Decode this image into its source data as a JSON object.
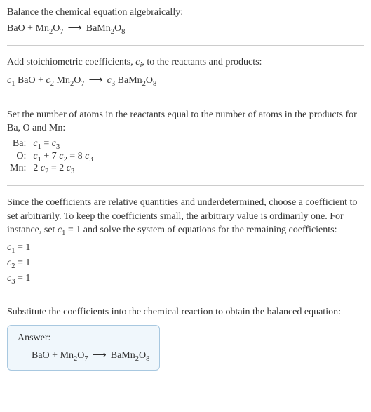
{
  "colors": {
    "text": "#333333",
    "divider": "#cccccc",
    "answer_border": "#a8c8e0",
    "answer_bg": "#f0f7fc"
  },
  "typography": {
    "body_fontsize_pt": 11,
    "font_family": "Georgia, Times New Roman, serif"
  },
  "s1": {
    "line1": "Balance the chemical equation algebraically:"
  },
  "s2": {
    "intro_a": "Add stoichiometric coefficients, ",
    "intro_b": ", to the reactants and products:"
  },
  "s3": {
    "intro": "Set the number of atoms in the reactants equal to the number of atoms in the products for Ba, O and Mn:",
    "rows": [
      {
        "el": "Ba:"
      },
      {
        "el": "O:"
      },
      {
        "el": "Mn:"
      }
    ]
  },
  "s4": {
    "intro_a": "Since the coefficients are relative quantities and underdetermined, choose a coefficient to set arbitrarily. To keep the coefficients small, the arbitrary value is ordinarily one. For instance, set ",
    "intro_b": " = 1 and solve the system of equations for the remaining coefficients:",
    "c1": " = 1",
    "c2": " = 1",
    "c3": " = 1"
  },
  "s5": {
    "intro": "Substitute the coefficients into the chemical reaction to obtain the balanced equation:",
    "answer_label": "Answer:"
  },
  "chem": {
    "BaO": "BaO",
    "plus": " + ",
    "Mn": "Mn",
    "two": "2",
    "O7": "O",
    "seven": "7",
    "arrow": "⟶",
    "BaMn": "BaMn",
    "O8": "O",
    "eight": "8",
    "c": "c",
    "i": "i",
    "one": "1",
    "three": "3",
    "eq": " = ",
    "plus7": " + 7 ",
    "eq8": " = 8 ",
    "twosp": "2 ",
    "eq2": " = 2 "
  }
}
